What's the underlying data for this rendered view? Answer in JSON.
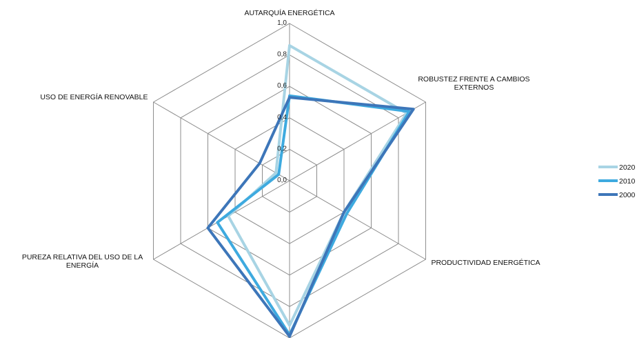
{
  "chart_data": {
    "type": "radar",
    "title": "",
    "axes": [
      [
        "AUTARQUÍA ENERGÉTICA"
      ],
      [
        "ROBUSTEZ FRENTE A CAMBIOS",
        "EXTERNOS"
      ],
      [
        "PRODUCTIVIDAD ENERGÉTICA"
      ],
      [
        ""
      ],
      [
        "PUREZA RELATIVA DEL USO DE LA",
        "ENERGÍA"
      ],
      [
        "USO DE ENERGÍA RENOVABLE"
      ]
    ],
    "ticks": [
      "0,0",
      "0,2",
      "0,4",
      "0,6",
      "0,8",
      "1,0"
    ],
    "rlim": [
      0,
      1
    ],
    "grid": true,
    "legend_position": "right",
    "series": [
      {
        "name": "2020",
        "color": "#a8d4e4",
        "values": [
          0.86,
          0.86,
          0.4,
          0.92,
          0.45,
          0.1
        ]
      },
      {
        "name": "2010",
        "color": "#3eaadf",
        "values": [
          0.54,
          0.88,
          0.42,
          0.98,
          0.53,
          0.08
        ]
      },
      {
        "name": "2000",
        "color": "#3d76b9",
        "values": [
          0.53,
          0.91,
          0.4,
          0.99,
          0.6,
          0.22
        ]
      }
    ]
  }
}
